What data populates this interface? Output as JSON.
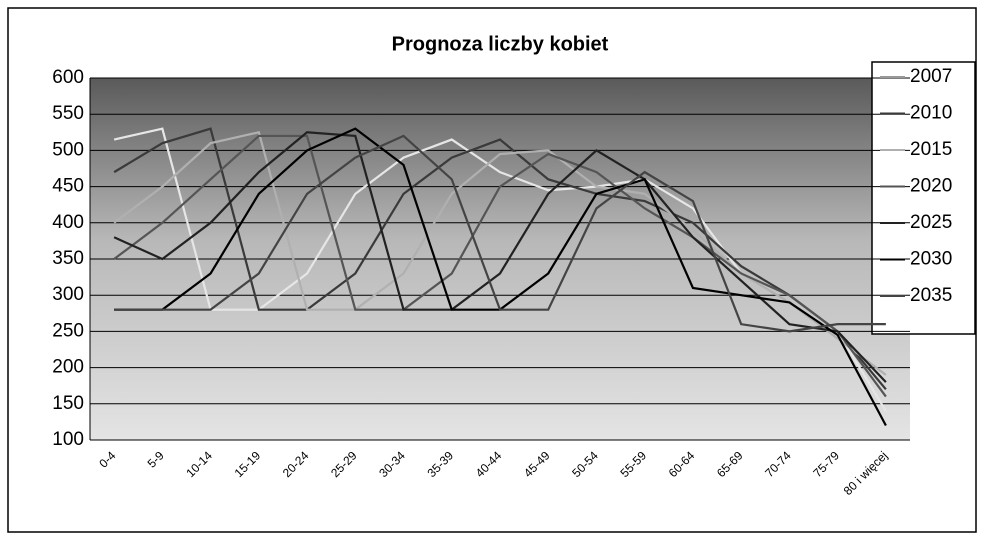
{
  "chart_data": {
    "type": "line",
    "title": "Prognoza liczby kobiet",
    "categories": [
      "0-4",
      "5-9",
      "10-14",
      "15-19",
      "20-24",
      "25-29",
      "30-34",
      "35-39",
      "40-44",
      "45-49",
      "50-54",
      "55-59",
      "60-64",
      "65-69",
      "70-74",
      "75-79",
      "80 i więcej"
    ],
    "series": [
      {
        "name": "2007",
        "color": "#e6e6e6",
        "values": [
          515,
          530,
          280,
          280,
          330,
          440,
          490,
          515,
          470,
          445,
          450,
          460,
          420,
          330,
          300,
          250,
          140
        ]
      },
      {
        "name": "2010",
        "color": "#3a3a3a",
        "values": [
          470,
          510,
          530,
          280,
          280,
          330,
          440,
          490,
          515,
          460,
          440,
          430,
          400,
          340,
          300,
          250,
          170
        ]
      },
      {
        "name": "2015",
        "color": "#b0b0b0",
        "values": [
          400,
          450,
          510,
          525,
          280,
          280,
          330,
          440,
          495,
          500,
          450,
          440,
          390,
          330,
          290,
          240,
          190
        ]
      },
      {
        "name": "2020",
        "color": "#555555",
        "values": [
          350,
          400,
          460,
          520,
          520,
          280,
          280,
          330,
          450,
          495,
          470,
          420,
          380,
          330,
          300,
          250,
          160
        ]
      },
      {
        "name": "2025",
        "color": "#222222",
        "values": [
          380,
          350,
          400,
          470,
          525,
          520,
          280,
          280,
          330,
          440,
          500,
          460,
          380,
          320,
          260,
          250,
          180
        ]
      },
      {
        "name": "2030",
        "color": "#000000",
        "values": [
          280,
          280,
          330,
          440,
          500,
          530,
          480,
          280,
          280,
          330,
          440,
          460,
          310,
          300,
          290,
          245,
          120
        ]
      },
      {
        "name": "2035",
        "color": "#444444",
        "values": [
          280,
          280,
          280,
          330,
          440,
          490,
          520,
          460,
          280,
          280,
          420,
          470,
          430,
          260,
          250,
          260,
          260
        ]
      }
    ],
    "ylim": [
      100,
      600
    ],
    "yticks": [
      100,
      150,
      200,
      250,
      300,
      350,
      400,
      450,
      500,
      550,
      600
    ],
    "grid": true,
    "legend": "right"
  }
}
